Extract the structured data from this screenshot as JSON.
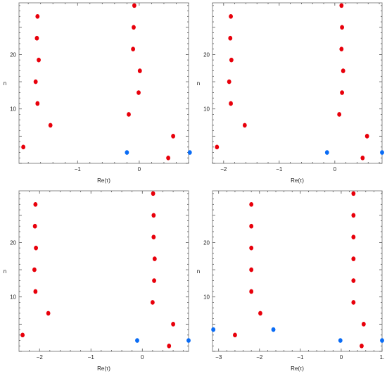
{
  "colors": {
    "red": "#e8000b",
    "blue": "#0a6cf5",
    "frame": "#8a8a8a"
  },
  "chart_data": [
    {
      "type": "scatter",
      "xlabel": "Re(τ)",
      "ylabel": "n",
      "xlim": [
        -1.95,
        0.8
      ],
      "ylim": [
        0,
        29.5
      ],
      "xticks": [
        -1,
        0
      ],
      "xtick_labels": [
        "−1",
        "0"
      ],
      "yticks": [
        10,
        20
      ],
      "ytick_labels": [
        "10",
        "20"
      ],
      "grid": false,
      "series": [
        {
          "color": "red",
          "x": [
            -1.88,
            -1.44,
            -1.65,
            -1.68,
            -1.63,
            -1.66,
            -1.65,
            0.47,
            0.55,
            -0.17,
            -0.01,
            0.01,
            -0.1,
            -0.09,
            -0.08
          ],
          "y": [
            3,
            7,
            11,
            15,
            19,
            23,
            27,
            1,
            5,
            9,
            13,
            17,
            21,
            25,
            29
          ]
        },
        {
          "color": "blue",
          "x": [
            -0.2,
            0.82
          ],
          "y": [
            2,
            2
          ]
        }
      ]
    },
    {
      "type": "scatter",
      "xlabel": "Re(τ)",
      "ylabel": "n",
      "xlim": [
        -2.2,
        0.85
      ],
      "ylim": [
        0,
        29.5
      ],
      "xticks": [
        -2,
        -1,
        0
      ],
      "xtick_labels": [
        "−2",
        "−1",
        "0"
      ],
      "yticks": [
        10,
        20
      ],
      "ytick_labels": [
        "10",
        "20"
      ],
      "grid": false,
      "series": [
        {
          "color": "red",
          "x": [
            -2.12,
            -1.62,
            -1.87,
            -1.9,
            -1.86,
            -1.88,
            -1.87,
            0.5,
            0.58,
            0.08,
            0.13,
            0.15,
            0.12,
            0.13,
            0.12
          ],
          "y": [
            3,
            7,
            11,
            15,
            19,
            23,
            27,
            1,
            5,
            9,
            13,
            17,
            21,
            25,
            29
          ]
        },
        {
          "color": "blue",
          "x": [
            -0.14,
            0.85
          ],
          "y": [
            2,
            2
          ]
        }
      ]
    },
    {
      "type": "scatter",
      "xlabel": "Re(τ)",
      "ylabel": "n",
      "xlim": [
        -2.4,
        0.9
      ],
      "ylim": [
        0,
        29.5
      ],
      "xticks": [
        -2,
        -1,
        0
      ],
      "xtick_labels": [
        "−2",
        "−1",
        "0"
      ],
      "yticks": [
        10,
        20
      ],
      "ytick_labels": [
        "10",
        "20"
      ],
      "grid": false,
      "series": [
        {
          "color": "red",
          "x": [
            -2.33,
            -1.83,
            -2.08,
            -2.1,
            -2.07,
            -2.09,
            -2.08,
            0.52,
            0.6,
            0.2,
            0.23,
            0.24,
            0.22,
            0.22,
            0.21
          ],
          "y": [
            3,
            7,
            11,
            15,
            19,
            23,
            27,
            1,
            5,
            9,
            13,
            17,
            21,
            25,
            29
          ]
        },
        {
          "color": "blue",
          "x": [
            -0.1,
            0.9
          ],
          "y": [
            2,
            2
          ]
        }
      ]
    },
    {
      "type": "scatter",
      "xlabel": "Re(τ)",
      "ylabel": "n",
      "xlim": [
        -3.15,
        1.0
      ],
      "ylim": [
        0,
        29.5
      ],
      "xticks": [
        -3,
        -2,
        -1,
        0,
        1
      ],
      "xtick_labels": [
        "−3",
        "−2",
        "−1",
        "0",
        "1."
      ],
      "yticks": [
        10,
        20
      ],
      "ytick_labels": [
        "10",
        "20"
      ],
      "grid": false,
      "series": [
        {
          "color": "red",
          "x": [
            -2.6,
            -1.98,
            -2.2,
            -2.2,
            -2.2,
            -2.2,
            -2.2,
            0.5,
            0.55,
            0.3,
            0.3,
            0.3,
            0.3,
            0.3,
            0.3
          ],
          "y": [
            3,
            7,
            11,
            15,
            19,
            23,
            27,
            1,
            5,
            9,
            13,
            17,
            21,
            25,
            29
          ]
        },
        {
          "color": "blue",
          "x": [
            -3.13,
            -1.66,
            -0.02,
            1.0
          ],
          "y": [
            4,
            4,
            2,
            2
          ]
        }
      ]
    }
  ]
}
